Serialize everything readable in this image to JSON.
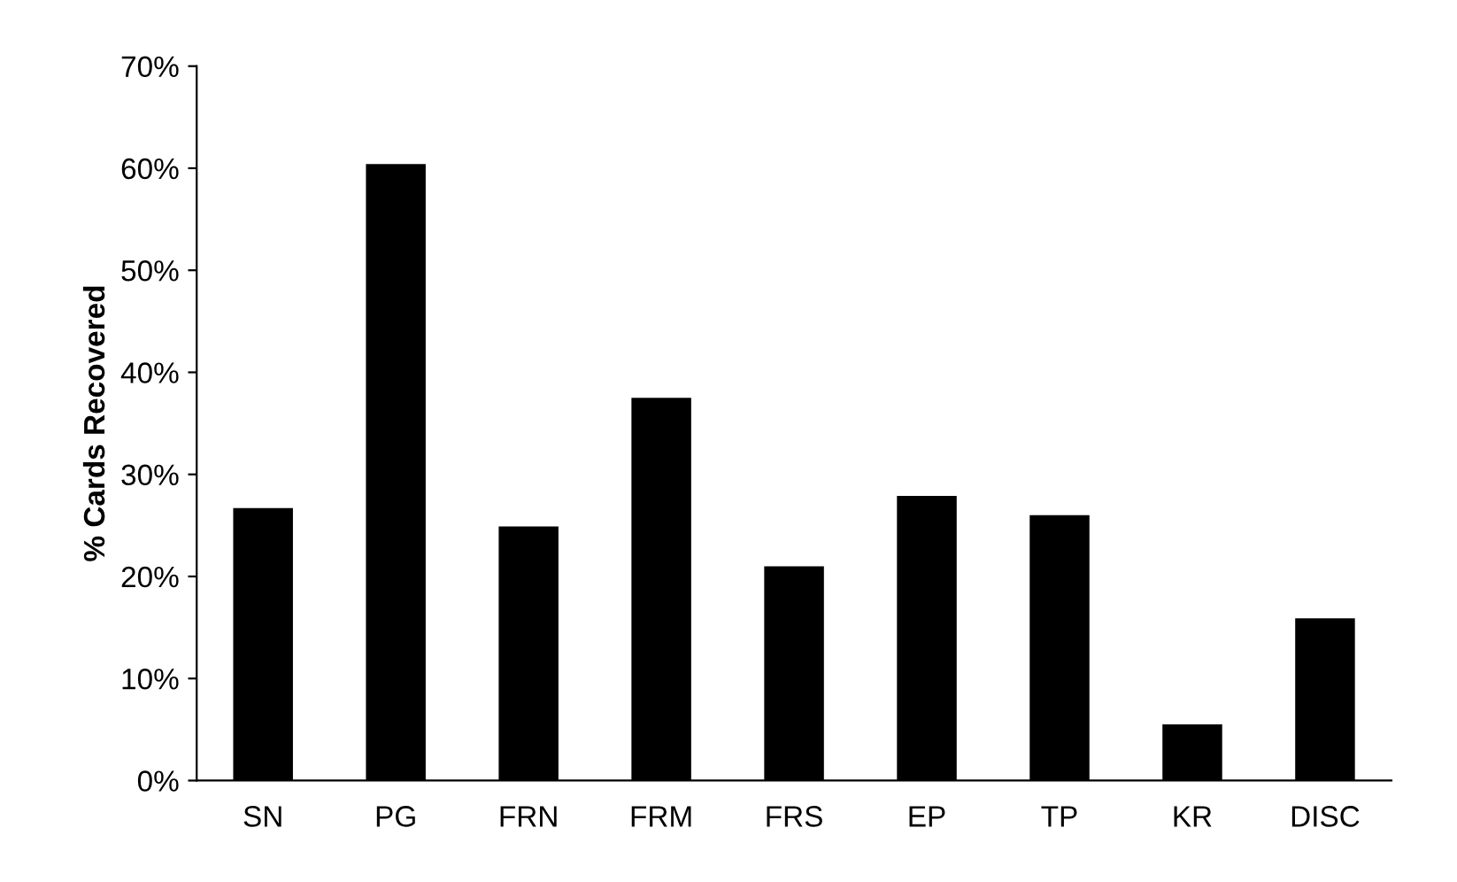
{
  "chart_data": {
    "type": "bar",
    "ylabel": "% Cards Recovered",
    "categories": [
      "SN",
      "PG",
      "FRN",
      "FRM",
      "FRS",
      "EP",
      "TP",
      "KR",
      "DISC"
    ],
    "values": [
      26.7,
      60.4,
      24.9,
      37.5,
      21.0,
      27.9,
      26.0,
      5.5,
      15.9
    ],
    "color": "#000000",
    "ylim": [
      0,
      70
    ],
    "yticks": [
      {
        "value": 0,
        "label": "0%"
      },
      {
        "value": 10,
        "label": "10%"
      },
      {
        "value": 20,
        "label": "20%"
      },
      {
        "value": 30,
        "label": "30%"
      },
      {
        "value": 40,
        "label": "40%"
      },
      {
        "value": 50,
        "label": "50%"
      },
      {
        "value": 60,
        "label": "60%"
      },
      {
        "value": 70,
        "label": "70%"
      }
    ],
    "grid": false,
    "legend": false
  }
}
